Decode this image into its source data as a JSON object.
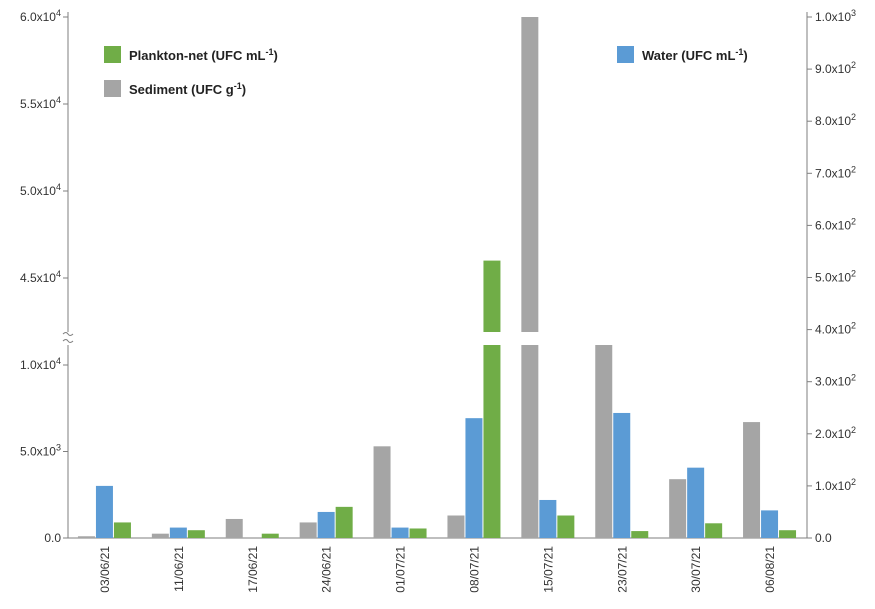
{
  "chart_data": {
    "type": "bar",
    "title": "",
    "xlabel": "",
    "categories": [
      "03/06/21",
      "11/06/21",
      "17/06/21",
      "24/06/21",
      "01/07/21",
      "08/07/21",
      "15/07/21",
      "23/07/21",
      "30/07/21",
      "06/08/21"
    ],
    "series": [
      {
        "name": "Sediment (UFC g-1)",
        "axis": "left",
        "color": "#a5a5a5",
        "values": [
          100,
          250,
          1100,
          900,
          5300,
          1300,
          60000,
          11000,
          3400,
          6700
        ]
      },
      {
        "name": "Water (UFC mL-1)",
        "axis": "right",
        "color": "#5b9bd5",
        "values": [
          100,
          20,
          0,
          50,
          20,
          230,
          73,
          240,
          135,
          53
        ]
      },
      {
        "name": "Plankton-net (UFC mL-1)",
        "axis": "left",
        "color": "#70ad47",
        "values": [
          900,
          450,
          250,
          1800,
          550,
          46000,
          1300,
          400,
          850,
          450
        ]
      }
    ],
    "left_axis": {
      "lower_ylim": [
        0,
        11000
      ],
      "upper_ylim": [
        42500,
        60000
      ],
      "broken": true,
      "ticks": [
        {
          "value": 0,
          "label": "0.0"
        },
        {
          "value": 5000,
          "label": "5.0x10",
          "exp": "3"
        },
        {
          "value": 10000,
          "label": "1.0x10",
          "exp": "4"
        },
        {
          "value": 45000,
          "label": "4.5x10",
          "exp": "4"
        },
        {
          "value": 50000,
          "label": "5.0x10",
          "exp": "4"
        },
        {
          "value": 55000,
          "label": "5.5x10",
          "exp": "4"
        },
        {
          "value": 60000,
          "label": "6.0x10",
          "exp": "4"
        }
      ]
    },
    "right_axis": {
      "ylim": [
        0,
        1000
      ],
      "ticks": [
        {
          "value": 0,
          "label": "0.0"
        },
        {
          "value": 100,
          "label": "1.0x10",
          "exp": "2"
        },
        {
          "value": 200,
          "label": "2.0x10",
          "exp": "2"
        },
        {
          "value": 300,
          "label": "3.0x10",
          "exp": "2"
        },
        {
          "value": 400,
          "label": "4.0x10",
          "exp": "2"
        },
        {
          "value": 500,
          "label": "5.0x10",
          "exp": "2"
        },
        {
          "value": 600,
          "label": "6.0x10",
          "exp": "2"
        },
        {
          "value": 700,
          "label": "7.0x10",
          "exp": "2"
        },
        {
          "value": 800,
          "label": "8.0x10",
          "exp": "2"
        },
        {
          "value": 900,
          "label": "9.0x10",
          "exp": "2"
        },
        {
          "value": 1000,
          "label": "1.0x10",
          "exp": "3"
        }
      ]
    },
    "legend": [
      {
        "label": "Plankton-net (UFC mL",
        "sup": "-1",
        "end": ")",
        "color": "#70ad47",
        "placement": "top-left"
      },
      {
        "label": "Sediment (UFC g",
        "sup": "-1",
        "end": ")",
        "color": "#a5a5a5",
        "placement": "top-left"
      },
      {
        "label": "Water (UFC mL",
        "sup": "-1",
        "end": ")",
        "color": "#5b9bd5",
        "placement": "top-right"
      }
    ],
    "grid": false
  }
}
